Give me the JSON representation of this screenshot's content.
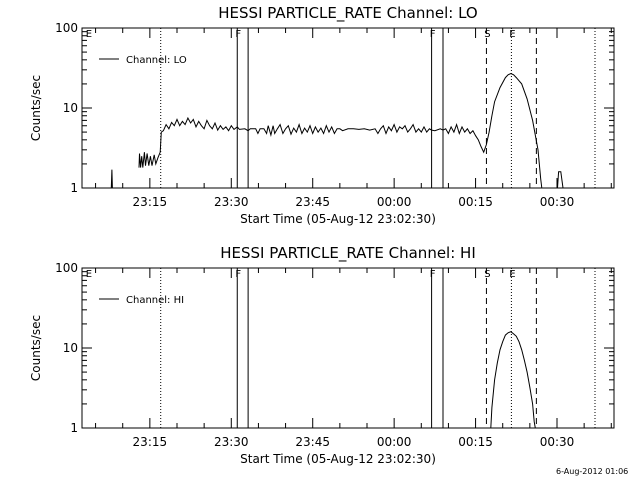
{
  "chart_data": [
    {
      "type": "line",
      "title": "HESSI PARTICLE_RATE Channel: LO",
      "xlabel": "Start Time (05-Aug-12 23:02:30)",
      "ylabel": "Counts/sec",
      "yscale": "log",
      "ylim": [
        1,
        100
      ],
      "yticks": [
        1,
        10,
        100
      ],
      "xlim_min": [
        0,
        98
      ],
      "xticks": [
        {
          "label": "23:15",
          "min": 12.5
        },
        {
          "label": "23:30",
          "min": 27.5
        },
        {
          "label": "23:45",
          "min": 42.5
        },
        {
          "label": "00:00",
          "min": 57.5
        },
        {
          "label": "00:15",
          "min": 72.5
        },
        {
          "label": "00:30",
          "min": 87.5
        }
      ],
      "legend": {
        "label": "Channel: LO",
        "position": "top-left"
      },
      "grid": false,
      "markers": [
        {
          "label": "E",
          "min": 0.5,
          "style": "none"
        },
        {
          "label": "",
          "min": 14.5,
          "style": "dotted"
        },
        {
          "label": "F",
          "min": 28.6,
          "style": "solid"
        },
        {
          "label": "",
          "min": 30.6,
          "style": "solid"
        },
        {
          "label": "F",
          "min": 64.4,
          "style": "solid"
        },
        {
          "label": "",
          "min": 66.5,
          "style": "solid"
        },
        {
          "label": "S",
          "min": 74.5,
          "style": "dashed"
        },
        {
          "label": "E",
          "min": 79.1,
          "style": "dotted"
        },
        {
          "label": "",
          "min": 83.7,
          "style": "dashed"
        },
        {
          "label": "",
          "min": 94.5,
          "style": "dotted"
        }
      ],
      "series": [
        {
          "name": "Channel: LO",
          "points": [
            [
              0,
              "gap"
            ],
            [
              5.4,
              1
            ],
            [
              5.5,
              1.7
            ],
            [
              5.6,
              1
            ],
            [
              5.7,
              "gap"
            ],
            [
              10.5,
              1.8
            ],
            [
              10.6,
              2.7
            ],
            [
              10.8,
              1.8
            ],
            [
              11,
              2.5
            ],
            [
              11.2,
              1.8
            ],
            [
              11.5,
              2.8
            ],
            [
              11.7,
              1.9
            ],
            [
              12,
              2.7
            ],
            [
              12.3,
              1.9
            ],
            [
              12.6,
              2.5
            ],
            [
              12.9,
              1.9
            ],
            [
              13.3,
              2.6
            ],
            [
              13.6,
              2
            ],
            [
              14,
              2.4
            ],
            [
              14.4,
              2.8
            ],
            [
              14.6,
              5
            ],
            [
              15,
              5.2
            ],
            [
              15.5,
              6.2
            ],
            [
              16,
              5.5
            ],
            [
              16.5,
              6.6
            ],
            [
              17,
              6
            ],
            [
              17.5,
              7.2
            ],
            [
              18,
              6
            ],
            [
              18.5,
              6.8
            ],
            [
              19,
              6.2
            ],
            [
              19.5,
              7.5
            ],
            [
              20,
              6.5
            ],
            [
              20.5,
              7.2
            ],
            [
              21,
              5.8
            ],
            [
              21.5,
              6.8
            ],
            [
              22,
              6
            ],
            [
              22.5,
              5.5
            ],
            [
              23,
              7
            ],
            [
              23.5,
              6
            ],
            [
              24,
              5.5
            ],
            [
              24.5,
              6.5
            ],
            [
              25,
              5.3
            ],
            [
              25.5,
              6
            ],
            [
              26,
              5.4
            ],
            [
              26.5,
              5.8
            ],
            [
              27,
              5.2
            ],
            [
              27.5,
              6
            ],
            [
              28,
              5.4
            ],
            [
              28.6,
              5.8
            ],
            [
              29,
              5.4
            ],
            [
              30,
              5.5
            ],
            [
              30.6,
              5.2
            ],
            [
              31,
              5.5
            ],
            [
              31.6,
              5.5
            ],
            [
              32,
              5.5
            ],
            [
              32.4,
              4.8
            ],
            [
              32.8,
              5.5
            ],
            [
              33.5,
              5.5
            ],
            [
              34,
              4.8
            ],
            [
              34.3,
              6
            ],
            [
              34.8,
              4.6
            ],
            [
              35.2,
              6
            ],
            [
              35.5,
              4.8
            ],
            [
              36,
              5.5
            ],
            [
              36.5,
              6.2
            ],
            [
              37,
              4.8
            ],
            [
              37.5,
              5.5
            ],
            [
              38,
              6
            ],
            [
              38.5,
              4.7
            ],
            [
              39,
              5.6
            ],
            [
              39.5,
              5
            ],
            [
              40,
              6.2
            ],
            [
              40.5,
              4.8
            ],
            [
              41,
              5.6
            ],
            [
              41.5,
              5
            ],
            [
              42,
              6
            ],
            [
              42.5,
              4.8
            ],
            [
              43,
              5.8
            ],
            [
              43.5,
              5
            ],
            [
              44,
              5.6
            ],
            [
              44.5,
              4.8
            ],
            [
              45,
              6
            ],
            [
              45.5,
              5
            ],
            [
              46,
              5.8
            ],
            [
              46.5,
              4.8
            ],
            [
              47,
              5.5
            ],
            [
              47.5,
              5.5
            ],
            [
              48,
              5.2
            ],
            [
              49,
              5.5
            ],
            [
              50,
              5.5
            ],
            [
              51,
              5.4
            ],
            [
              52,
              5.5
            ],
            [
              53,
              5.3
            ],
            [
              54,
              5.5
            ],
            [
              54.5,
              4.8
            ],
            [
              55,
              5.5
            ],
            [
              55.5,
              6
            ],
            [
              56,
              4.8
            ],
            [
              56.5,
              5.8
            ],
            [
              57,
              5.2
            ],
            [
              57.5,
              6.2
            ],
            [
              58,
              5
            ],
            [
              58.5,
              5.8
            ],
            [
              59,
              5.5
            ],
            [
              59.5,
              6
            ],
            [
              60,
              5
            ],
            [
              60.5,
              5.5
            ],
            [
              61,
              6.2
            ],
            [
              61.5,
              5
            ],
            [
              62,
              5.5
            ],
            [
              62.5,
              5
            ],
            [
              63,
              5.8
            ],
            [
              63.5,
              5
            ],
            [
              64,
              5.5
            ],
            [
              64.4,
              5.3
            ],
            [
              65,
              5.2
            ],
            [
              66,
              5.5
            ],
            [
              66.5,
              5.3
            ],
            [
              67,
              5.5
            ],
            [
              67.5,
              4.8
            ],
            [
              68,
              5.8
            ],
            [
              68.5,
              5
            ],
            [
              69,
              6.2
            ],
            [
              69.5,
              4.8
            ],
            [
              70,
              5.8
            ],
            [
              70.5,
              5
            ],
            [
              71,
              5.5
            ],
            [
              71.5,
              4.8
            ],
            [
              72,
              5.2
            ],
            [
              72.5,
              4.5
            ],
            [
              73,
              4
            ],
            [
              73.5,
              3.3
            ],
            [
              74,
              2.8
            ],
            [
              74.5,
              3.5
            ],
            [
              75,
              5
            ],
            [
              75.5,
              8
            ],
            [
              76,
              12
            ],
            [
              77,
              18
            ],
            [
              78,
              24
            ],
            [
              78.5,
              26
            ],
            [
              79,
              27
            ],
            [
              79.5,
              26
            ],
            [
              80,
              24
            ],
            [
              81,
              20
            ],
            [
              82,
              13
            ],
            [
              83,
              7
            ],
            [
              84,
              3
            ],
            [
              84.5,
              1.3
            ],
            [
              84.7,
              1
            ],
            [
              84.8,
              "gap"
            ],
            [
              87.6,
              1
            ],
            [
              87.8,
              1.6
            ],
            [
              88.2,
              1.6
            ],
            [
              88.6,
              1
            ],
            [
              88.7,
              "gap"
            ]
          ]
        }
      ]
    },
    {
      "type": "line",
      "title": "HESSI PARTICLE_RATE Channel: HI",
      "xlabel": "Start Time (05-Aug-12 23:02:30)",
      "ylabel": "Counts/sec",
      "yscale": "log",
      "ylim": [
        1,
        100
      ],
      "yticks": [
        1,
        10,
        100
      ],
      "xlim_min": [
        0,
        98
      ],
      "xticks": [
        {
          "label": "23:15",
          "min": 12.5
        },
        {
          "label": "23:30",
          "min": 27.5
        },
        {
          "label": "23:45",
          "min": 42.5
        },
        {
          "label": "00:00",
          "min": 57.5
        },
        {
          "label": "00:15",
          "min": 72.5
        },
        {
          "label": "00:30",
          "min": 87.5
        }
      ],
      "legend": {
        "label": "Channel: HI",
        "position": "top-left"
      },
      "grid": false,
      "markers": [
        {
          "label": "E",
          "min": 0.5,
          "style": "none"
        },
        {
          "label": "",
          "min": 14.5,
          "style": "dotted"
        },
        {
          "label": "F",
          "min": 28.6,
          "style": "solid"
        },
        {
          "label": "",
          "min": 30.6,
          "style": "solid"
        },
        {
          "label": "F",
          "min": 64.4,
          "style": "solid"
        },
        {
          "label": "",
          "min": 66.5,
          "style": "solid"
        },
        {
          "label": "S",
          "min": 74.5,
          "style": "dashed"
        },
        {
          "label": "E",
          "min": 79.1,
          "style": "dotted"
        },
        {
          "label": "",
          "min": 83.7,
          "style": "dashed"
        },
        {
          "label": "",
          "min": 94.5,
          "style": "dotted"
        }
      ],
      "series": [
        {
          "name": "Channel: HI",
          "points": [
            [
              0,
              "gap"
            ],
            [
              75.3,
              1
            ],
            [
              75.5,
              1.8
            ],
            [
              76,
              4
            ],
            [
              76.5,
              6.5
            ],
            [
              77,
              9.5
            ],
            [
              77.5,
              12
            ],
            [
              78,
              14.5
            ],
            [
              78.5,
              15.5
            ],
            [
              79,
              16
            ],
            [
              79.5,
              15
            ],
            [
              80,
              14
            ],
            [
              80.5,
              12
            ],
            [
              81,
              9.5
            ],
            [
              81.5,
              7
            ],
            [
              82,
              5
            ],
            [
              82.5,
              3.2
            ],
            [
              83,
              2
            ],
            [
              83.3,
              1.2
            ],
            [
              83.5,
              1
            ],
            [
              83.6,
              "gap"
            ]
          ]
        }
      ]
    }
  ],
  "footer": {
    "date_stamp": "6-Aug-2012 01:06"
  }
}
